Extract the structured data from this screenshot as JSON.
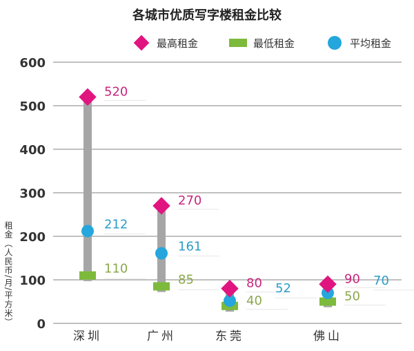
{
  "chart_data": {
    "type": "range-dot",
    "title": "各城市优质写字楼租金比较",
    "ylabel": "租金（人民币/月/平方米）",
    "xlabel": "",
    "ylim": [
      0,
      600
    ],
    "yticks": [
      0,
      100,
      200,
      300,
      400,
      500,
      600
    ],
    "grid": true,
    "legend_position": "top-right",
    "categories": [
      "深圳",
      "广州",
      "东莞",
      "佛山"
    ],
    "series": [
      {
        "name": "最高租金",
        "marker": "diamond",
        "color": "#e0157f",
        "values": [
          520,
          270,
          80,
          90
        ]
      },
      {
        "name": "最低租金",
        "marker": "rectangle",
        "color": "#7dba3c",
        "values": [
          110,
          85,
          40,
          50
        ]
      },
      {
        "name": "平均租金",
        "marker": "circle",
        "color": "#25a6dc",
        "values": [
          212,
          161,
          52,
          70
        ]
      }
    ],
    "range_bar_color": "#a6a6a6",
    "label_colors": {
      "max": "#c8267e",
      "min": "#8aa84a",
      "avg": "#2a9cc9"
    }
  }
}
